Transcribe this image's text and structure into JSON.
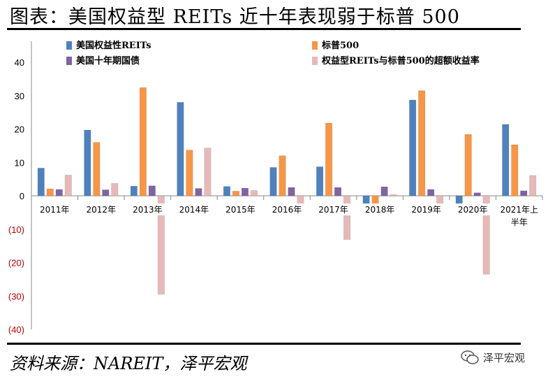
{
  "header": {
    "title": "图表：美国权益型 REITs 近十年表现弱于标普 500"
  },
  "footer": {
    "source": "资料来源：NAREIT，泽平宏观",
    "brand": "泽平宏观"
  },
  "colors": {
    "reits": "#4f81bd",
    "sp500": "#f79646",
    "treasury": "#8064a2",
    "excess": "#e6b9b8",
    "negative_tick": "#c00000"
  },
  "chart_data": {
    "type": "bar",
    "categories": [
      "2011年",
      "2012年",
      "2013年",
      "2014年",
      "2015年",
      "2016年",
      "2017年",
      "2018年",
      "2019年",
      "2020年",
      "2021年上半年"
    ],
    "category_lines": [
      [
        "2011年"
      ],
      [
        "2012年"
      ],
      [
        "2013年"
      ],
      [
        "2014年"
      ],
      [
        "2015年"
      ],
      [
        "2016年"
      ],
      [
        "2017年"
      ],
      [
        "2018年"
      ],
      [
        "2019年"
      ],
      [
        "2020年"
      ],
      [
        "2021年上",
        "半年"
      ]
    ],
    "series": [
      {
        "name": "美国权益性REITs",
        "values": [
          8.3,
          19.7,
          2.9,
          28.0,
          2.8,
          8.5,
          8.7,
          -4.0,
          28.7,
          -5.1,
          21.4
        ]
      },
      {
        "name": "标普500",
        "values": [
          2.1,
          16.0,
          32.4,
          13.7,
          1.4,
          12.0,
          21.8,
          -4.4,
          31.5,
          18.4,
          15.3
        ]
      },
      {
        "name": "美国十年期国债",
        "values": [
          1.9,
          1.8,
          3.0,
          2.2,
          2.3,
          2.5,
          2.5,
          2.7,
          1.9,
          0.9,
          1.5
        ]
      },
      {
        "name": "权益型REITs与标普500的超额收益率",
        "values": [
          6.2,
          3.7,
          -29.5,
          14.3,
          1.6,
          -3.5,
          -13.1,
          0.4,
          -2.8,
          -23.5,
          6.1
        ]
      }
    ],
    "y_ticks": [
      40,
      30,
      20,
      10,
      0,
      -10,
      -20,
      -30,
      -40
    ],
    "y_tick_labels": [
      "40",
      "30",
      "20",
      "10",
      "0",
      "(10)",
      "(20)",
      "(30)",
      "(40)"
    ],
    "ylim": [
      -40,
      40
    ],
    "xlabel": "",
    "ylabel": "",
    "legend_position": "top"
  }
}
